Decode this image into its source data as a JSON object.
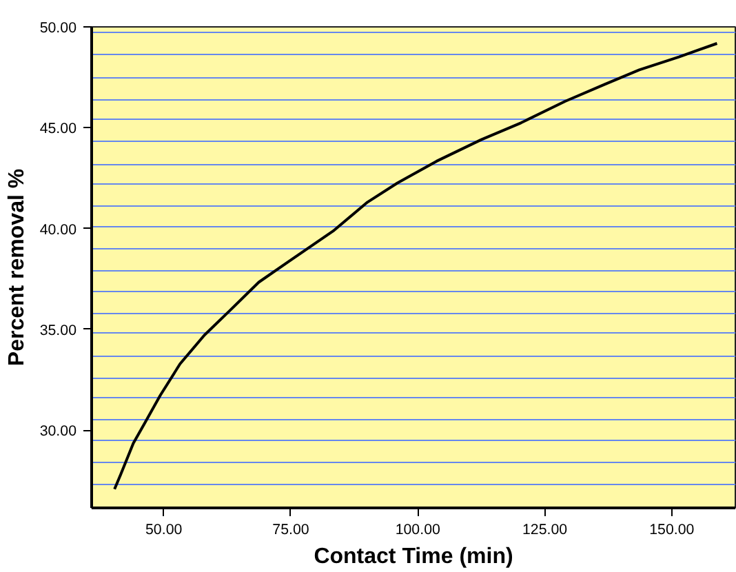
{
  "chart_data": {
    "type": "line",
    "xlabel": "Contact Time (min)",
    "ylabel": "Percent removal %",
    "x": [
      40.3,
      41.5,
      44.0,
      46.4,
      49.3,
      53.2,
      58.0,
      62.9,
      68.7,
      74.6,
      83.3,
      90.1,
      96.0,
      103.7,
      112.5,
      120.3,
      129.0,
      136.8,
      143.6,
      151.4,
      158.9
    ],
    "series": [
      {
        "color": "#000000",
        "values": [
          27.08,
          27.8,
          29.35,
          30.42,
          31.73,
          33.29,
          34.72,
          35.91,
          37.34,
          38.37,
          39.87,
          41.31,
          42.26,
          43.34,
          44.41,
          45.24,
          46.31,
          47.15,
          47.87,
          48.51,
          49.18
        ]
      }
    ],
    "xlim": [
      35.8,
      162.5
    ],
    "ylim": [
      26.15,
      50
    ],
    "xticks": [
      {
        "value": 50,
        "label": "50.00"
      },
      {
        "value": 75,
        "label": "75.00"
      },
      {
        "value": 100,
        "label": "100.00"
      },
      {
        "value": 125,
        "label": "125.00"
      },
      {
        "value": 150,
        "label": "150.00"
      }
    ],
    "yticks": [
      {
        "value": 30,
        "label": "30.00"
      },
      {
        "value": 35,
        "label": "35.00"
      },
      {
        "value": 40,
        "label": "40.00"
      },
      {
        "value": 45,
        "label": "45.00"
      },
      {
        "value": 50,
        "label": "50.00"
      },
      {
        "value": 27.3,
        "label": null
      },
      {
        "value": 28.4,
        "label": null
      },
      {
        "value": 29.5,
        "label": null
      },
      {
        "value": 30.5,
        "label": null
      },
      {
        "value": 31.6,
        "label": null
      },
      {
        "value": 32.6,
        "label": null
      },
      {
        "value": 33.7,
        "label": null
      },
      {
        "value": 34.8,
        "label": null
      },
      {
        "value": 35.8,
        "label": null
      },
      {
        "value": 36.9,
        "label": null
      },
      {
        "value": 37.9,
        "label": null
      },
      {
        "value": 39.0,
        "label": null
      },
      {
        "value": 40.1,
        "label": null
      },
      {
        "value": 41.1,
        "label": null
      },
      {
        "value": 42.2,
        "label": null
      },
      {
        "value": 43.2,
        "label": null
      },
      {
        "value": 44.3,
        "label": null
      },
      {
        "value": 45.4,
        "label": null
      },
      {
        "value": 46.4,
        "label": null
      },
      {
        "value": 47.5,
        "label": null
      },
      {
        "value": 48.6,
        "label": null
      },
      {
        "value": 49.7,
        "label": null
      }
    ],
    "grid": "y",
    "marker": "none",
    "line_style": "solid"
  }
}
